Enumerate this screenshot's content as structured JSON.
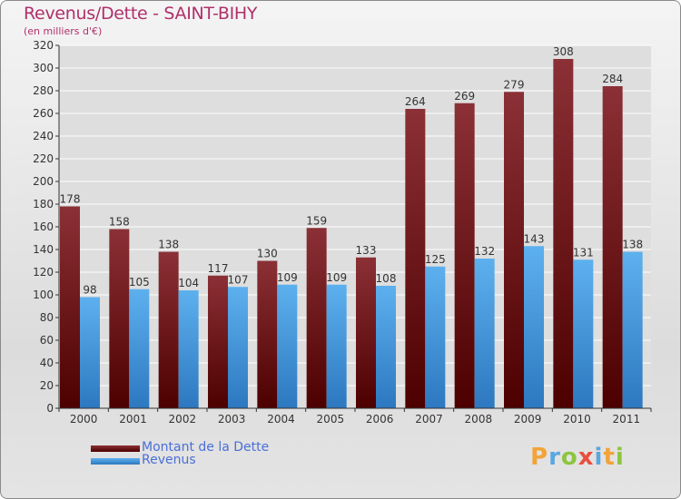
{
  "header": {
    "title": "Revenus/Dette - SAINT-BIHY",
    "subtitle": "(en milliers d'€)"
  },
  "logo": {
    "text": "Proxiti",
    "letters": [
      {
        "ch": "P",
        "color": "#f2a33a"
      },
      {
        "ch": "r",
        "color": "#5aa7e0"
      },
      {
        "ch": "o",
        "color": "#8cc63f"
      },
      {
        "ch": "x",
        "color": "#e94e3d"
      },
      {
        "ch": "i",
        "color": "#5aa7e0"
      },
      {
        "ch": "t",
        "color": "#f2a33a"
      },
      {
        "ch": "i",
        "color": "#8cc63f"
      }
    ]
  },
  "colors": {
    "debt_top": "#8b3036",
    "debt_bottom": "#4d0000",
    "revenue_top": "#5db0ee",
    "revenue_bottom": "#2d78c0",
    "grid": "#ffffff",
    "axis": "#333333"
  },
  "chart_data": {
    "type": "bar",
    "title": "Revenus/Dette - SAINT-BIHY",
    "subtitle": "(en milliers d'€)",
    "categories": [
      "2000",
      "2001",
      "2002",
      "2003",
      "2004",
      "2005",
      "2006",
      "2007",
      "2008",
      "2009",
      "2010",
      "2011"
    ],
    "series": [
      {
        "name": "Montant de la Dette",
        "values": [
          178,
          158,
          138,
          117,
          130,
          159,
          133,
          264,
          269,
          279,
          308,
          284
        ]
      },
      {
        "name": "Revenus",
        "values": [
          98,
          105,
          104,
          107,
          109,
          109,
          108,
          125,
          132,
          143,
          131,
          138
        ]
      }
    ],
    "ylim": [
      0,
      320
    ],
    "ytick_step": 20,
    "grid": true,
    "legend": "bottom-left"
  }
}
